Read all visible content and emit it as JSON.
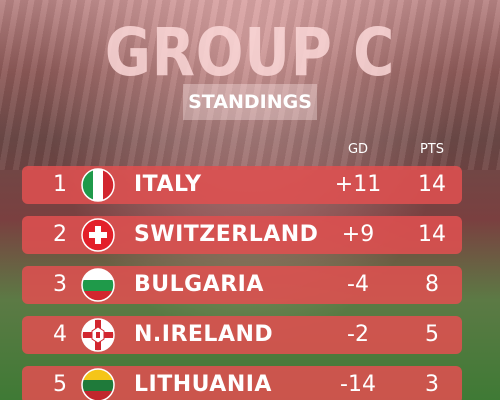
{
  "header": {
    "title": "GROUP C",
    "subtitle": "STANDINGS"
  },
  "table": {
    "columns": [
      "GD",
      "PTS"
    ],
    "rows": [
      {
        "rank": 1,
        "team": "ITALY",
        "gd": "+11",
        "pts": 14
      },
      {
        "rank": 2,
        "team": "SWITZERLAND",
        "gd": "+9",
        "pts": 14
      },
      {
        "rank": 3,
        "team": "BULGARIA",
        "gd": "-4",
        "pts": 8
      },
      {
        "rank": 4,
        "team": "N.IRELAND",
        "gd": "-2",
        "pts": 5
      },
      {
        "rank": 5,
        "team": "LITHUANIA",
        "gd": "-14",
        "pts": 3
      }
    ]
  }
}
